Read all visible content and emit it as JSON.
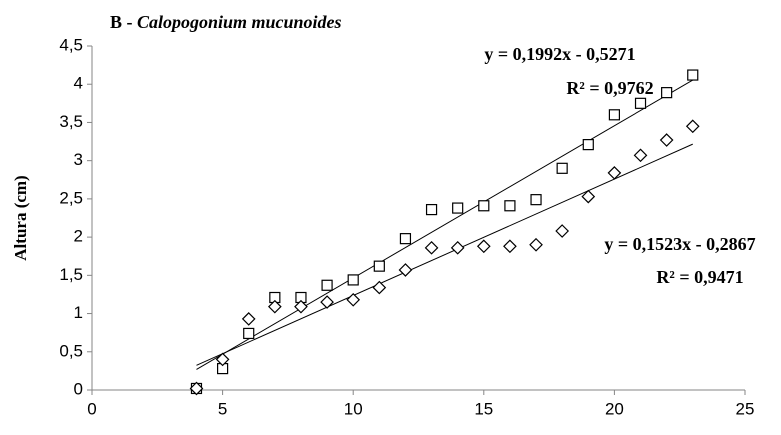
{
  "chart_data": {
    "type": "scatter",
    "title": [
      "B -",
      "Calopogonium mucunoides"
    ],
    "ylabel": "Altura (cm)",
    "xlim": [
      0,
      25
    ],
    "xticks": [
      0,
      5,
      10,
      15,
      20,
      25
    ],
    "ylim": [
      0,
      4.5
    ],
    "yticks": [
      0,
      {
        "value": 0.5,
        "label": "0,5"
      },
      1,
      {
        "value": 1.5,
        "label": "1,5"
      },
      2,
      {
        "value": 2.5,
        "label": "2,5"
      },
      3,
      {
        "value": 3.5,
        "label": "3,5"
      },
      4,
      {
        "value": 4.5,
        "label": "4,5"
      }
    ],
    "series": [
      {
        "marker": "square",
        "color": "#000000",
        "x": [
          4,
          5,
          6,
          7,
          8,
          9,
          10,
          11,
          12,
          13,
          14,
          15,
          16,
          17,
          18,
          19,
          20,
          21,
          22,
          23
        ],
        "values": [
          0.02,
          0.28,
          0.74,
          1.21,
          1.21,
          1.37,
          1.44,
          1.62,
          1.98,
          2.36,
          2.38,
          2.41,
          2.41,
          2.49,
          2.9,
          3.21,
          3.6,
          3.75,
          3.89,
          4.12
        ],
        "trendline": {
          "slope": 0.1992,
          "intercept": -0.5271,
          "label": "y = 0,1992x - 0,5271",
          "r2": 0.9762,
          "r2_label": "R² = 0,9762"
        }
      },
      {
        "marker": "diamond",
        "color": "#000000",
        "x": [
          4,
          5,
          6,
          7,
          8,
          9,
          10,
          11,
          12,
          13,
          14,
          15,
          16,
          17,
          18,
          19,
          20,
          21,
          22,
          23
        ],
        "values": [
          0.02,
          0.4,
          0.93,
          1.09,
          1.09,
          1.15,
          1.18,
          1.34,
          1.57,
          1.86,
          1.86,
          1.88,
          1.88,
          1.9,
          2.08,
          2.53,
          2.84,
          3.07,
          3.27,
          3.45
        ],
        "trendline": {
          "slope": 0.1523,
          "intercept": -0.2867,
          "label": "y = 0,1523x - 0,2867",
          "r2": 0.9471,
          "r2_label": "R² = 0,9471"
        }
      }
    ]
  }
}
